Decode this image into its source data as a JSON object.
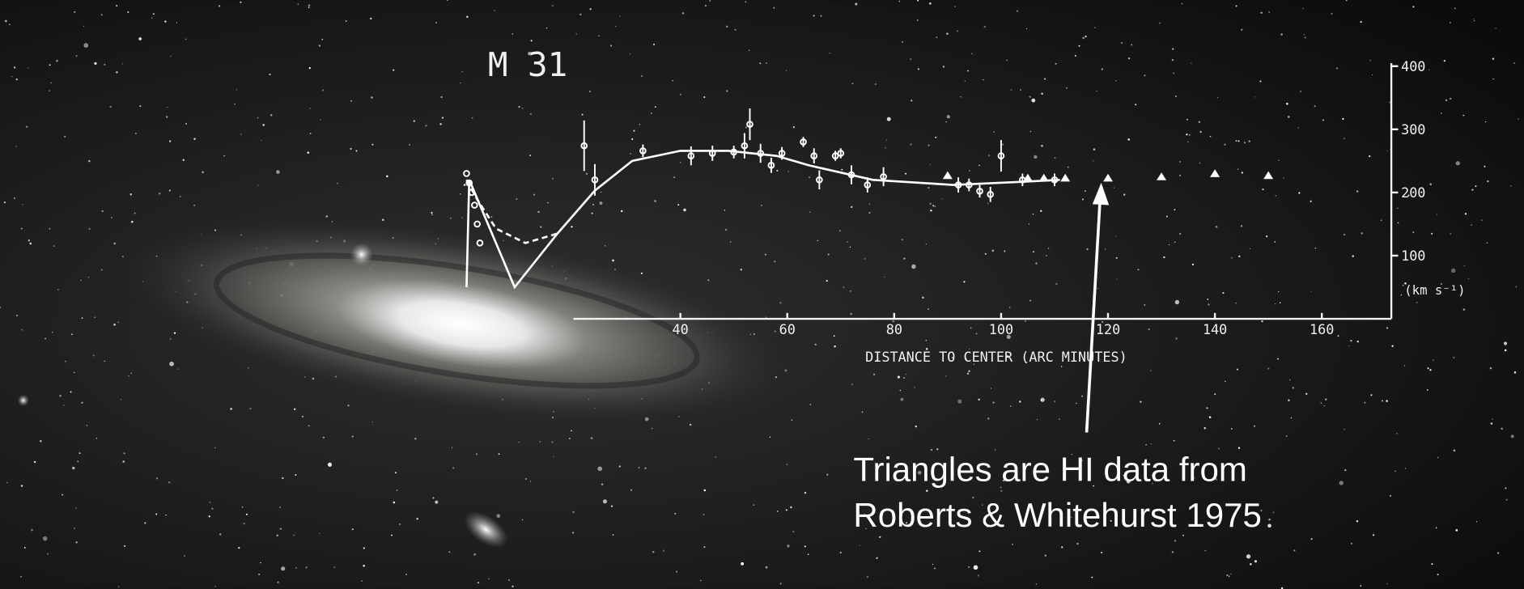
{
  "chart_data": {
    "type": "scatter",
    "title": "M 31",
    "xlabel": "DISTANCE TO CENTER (ARC MINUTES)",
    "ylabel": "(km s⁻¹)",
    "xlim": [
      0,
      173
    ],
    "ylim": [
      0,
      400
    ],
    "xticks": [
      40,
      60,
      80,
      100,
      120,
      140,
      160
    ],
    "yticks": [
      100,
      200,
      300,
      400
    ],
    "series": [
      {
        "marker": "circle",
        "color": "#ffffff",
        "x": [
          22,
          24,
          33,
          42,
          46,
          50,
          52,
          53,
          55,
          57,
          59,
          63,
          65,
          66,
          69,
          70,
          72,
          75,
          78,
          92,
          94,
          96,
          98,
          100,
          104,
          110
        ],
        "values": [
          274,
          220,
          266,
          258,
          262,
          264,
          274,
          308,
          262,
          243,
          262,
          280,
          258,
          220,
          258,
          262,
          228,
          212,
          225,
          212,
          212,
          202,
          197,
          258,
          220,
          220
        ],
        "errors": [
          40,
          25,
          10,
          15,
          12,
          10,
          20,
          25,
          15,
          12,
          10,
          8,
          12,
          15,
          8,
          8,
          15,
          12,
          15,
          12,
          10,
          10,
          12,
          25,
          10,
          10
        ]
      },
      {
        "marker": "circle",
        "color": "#ffffff",
        "x": [
          0,
          0.5,
          1,
          1.5,
          2,
          2.5
        ],
        "values": [
          230,
          215,
          200,
          180,
          150,
          120
        ]
      },
      {
        "marker": "triangle",
        "color": "#ffffff",
        "x": [
          90,
          105,
          108,
          112,
          120,
          130,
          140,
          150
        ],
        "values": [
          226,
          222,
          222,
          222,
          222,
          224,
          229,
          226
        ]
      },
      {
        "marker": "line",
        "style": "solid",
        "color": "#ffffff",
        "x": [
          0,
          0.5,
          9,
          17,
          24,
          31,
          40,
          49,
          58,
          64,
          76,
          91,
          104,
          111
        ],
        "values": [
          50,
          220,
          50,
          135,
          203,
          250,
          266,
          266,
          258,
          243,
          220,
          212,
          217,
          220
        ]
      },
      {
        "marker": "line",
        "style": "dashed",
        "color": "#ffffff",
        "x": [
          0,
          2,
          5.5,
          11,
          17
        ],
        "values": [
          220,
          189,
          143,
          120,
          135
        ]
      }
    ],
    "annotation": [
      "Triangles are HI data from",
      "Roberts & Whitehurst 1975"
    ]
  }
}
